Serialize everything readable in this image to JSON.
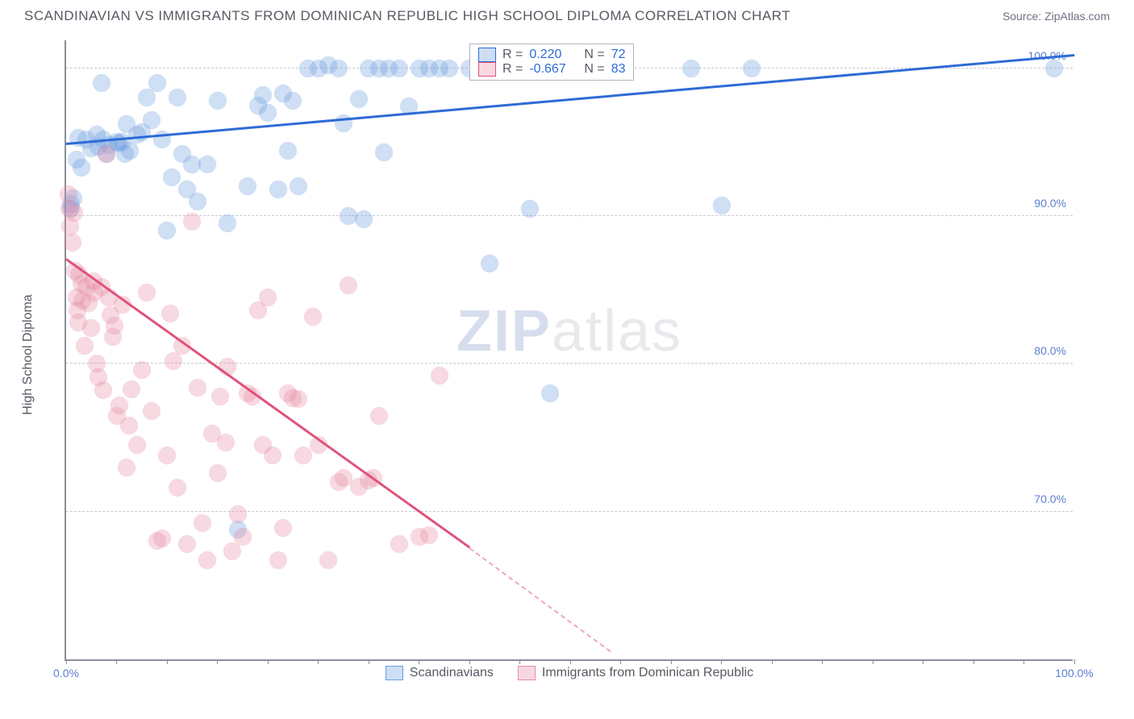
{
  "header": {
    "title": "SCANDINAVIAN VS IMMIGRANTS FROM DOMINICAN REPUBLIC HIGH SCHOOL DIPLOMA CORRELATION CHART",
    "source": "Source: ZipAtlas.com"
  },
  "chart": {
    "type": "scatter",
    "y_axis_title": "High School Diploma",
    "xlim": [
      0,
      100
    ],
    "ylim": [
      60,
      102
    ],
    "x_ticks": [
      0,
      100
    ],
    "x_tick_labels": [
      "0.0%",
      "100.0%"
    ],
    "y_ticks": [
      70,
      80,
      90,
      100
    ],
    "y_tick_labels": [
      "70.0%",
      "80.0%",
      "90.0%",
      "100.0%"
    ],
    "minor_x_tick_step": 5,
    "background_color": "#ffffff",
    "grid_color": "#c7cbd1",
    "axis_color": "#8a8f99",
    "tick_label_color": "#5b7fd1",
    "marker_radius": 10,
    "marker_fill_opacity": 0.32,
    "marker_stroke_opacity": 0.7,
    "marker_stroke_width": 1.2,
    "watermark": {
      "z_text": "ZIP",
      "rest_text": "atlas",
      "z_color": "#4a6fb5",
      "rest_color": "#9aa0aa"
    },
    "series": [
      {
        "name": "Scandinavians",
        "color": "#6d9de0",
        "line_color": "#2e6bd6",
        "R_label": "R =",
        "R_value": "0.220",
        "N_label": "N =",
        "N_value": "72",
        "trend": {
          "x1": 0,
          "y1": 94.8,
          "x2": 100,
          "y2": 100.8,
          "dash": false
        },
        "points": [
          [
            0.5,
            90.5
          ],
          [
            0.5,
            90.8
          ],
          [
            0.7,
            91.2
          ],
          [
            1,
            93.8
          ],
          [
            1.2,
            95.3
          ],
          [
            1.5,
            93.3
          ],
          [
            2,
            95.2
          ],
          [
            2.5,
            94.6
          ],
          [
            3,
            95.5
          ],
          [
            3.2,
            94.7
          ],
          [
            3.5,
            99
          ],
          [
            3.7,
            95.2
          ],
          [
            4,
            94.2
          ],
          [
            4.2,
            94.8
          ],
          [
            5,
            95
          ],
          [
            5.2,
            94.9
          ],
          [
            5.5,
            95
          ],
          [
            5.8,
            94.2
          ],
          [
            6,
            96.2
          ],
          [
            6.3,
            94.4
          ],
          [
            7,
            95.5
          ],
          [
            7.5,
            95.7
          ],
          [
            8,
            98
          ],
          [
            8.5,
            96.5
          ],
          [
            9,
            99
          ],
          [
            9.5,
            95.2
          ],
          [
            10,
            89
          ],
          [
            10.5,
            92.6
          ],
          [
            11,
            98
          ],
          [
            11.5,
            94.2
          ],
          [
            12,
            91.8
          ],
          [
            12.5,
            93.5
          ],
          [
            13,
            91
          ],
          [
            14,
            93.5
          ],
          [
            15,
            97.8
          ],
          [
            16,
            89.5
          ],
          [
            17,
            68.8
          ],
          [
            18,
            92
          ],
          [
            19,
            97.5
          ],
          [
            19.5,
            98.2
          ],
          [
            20,
            97
          ],
          [
            21,
            91.8
          ],
          [
            21.5,
            98.3
          ],
          [
            22,
            94.4
          ],
          [
            22.5,
            97.8
          ],
          [
            23,
            92
          ],
          [
            24,
            100
          ],
          [
            25,
            100
          ],
          [
            26,
            100.2
          ],
          [
            27,
            100
          ],
          [
            27.5,
            96.3
          ],
          [
            28,
            90
          ],
          [
            29,
            97.9
          ],
          [
            29.5,
            89.8
          ],
          [
            30,
            100
          ],
          [
            31,
            100
          ],
          [
            31.5,
            94.3
          ],
          [
            32,
            100
          ],
          [
            33,
            100
          ],
          [
            34,
            97.4
          ],
          [
            35,
            100
          ],
          [
            36,
            100
          ],
          [
            37,
            100
          ],
          [
            38,
            100
          ],
          [
            40,
            100
          ],
          [
            42,
            86.8
          ],
          [
            46,
            90.5
          ],
          [
            48,
            78
          ],
          [
            62,
            100
          ],
          [
            65,
            90.7
          ],
          [
            68,
            100
          ],
          [
            98,
            100
          ]
        ]
      },
      {
        "name": "Immigrants from Dominican Republic",
        "color": "#e78aa5",
        "line_color": "#e0527a",
        "R_label": "R =",
        "R_value": "-0.667",
        "N_label": "N =",
        "N_value": "83",
        "trend": {
          "x1": 0,
          "y1": 87,
          "x2": 40,
          "y2": 67.5,
          "dash": false
        },
        "trend_ext": {
          "x1": 40,
          "y1": 67.5,
          "x2": 54,
          "y2": 60.5,
          "dash": true
        },
        "points": [
          [
            0.2,
            91.5
          ],
          [
            0.3,
            90.5
          ],
          [
            0.4,
            89.3
          ],
          [
            0.6,
            88.2
          ],
          [
            0.8,
            90.2
          ],
          [
            0.9,
            86.3
          ],
          [
            1,
            84.5
          ],
          [
            1.1,
            83.6
          ],
          [
            1.2,
            82.8
          ],
          [
            1.3,
            86
          ],
          [
            1.5,
            85.4
          ],
          [
            1.6,
            84.3
          ],
          [
            1.8,
            81.2
          ],
          [
            2,
            85.2
          ],
          [
            2.2,
            84.1
          ],
          [
            2.5,
            82.4
          ],
          [
            2.7,
            85.6
          ],
          [
            2.8,
            84.8
          ],
          [
            3,
            80
          ],
          [
            3.2,
            79.1
          ],
          [
            3.5,
            85.2
          ],
          [
            3.7,
            78.2
          ],
          [
            4,
            94.2
          ],
          [
            4.2,
            84.5
          ],
          [
            4.4,
            83.3
          ],
          [
            4.6,
            81.8
          ],
          [
            4.8,
            82.6
          ],
          [
            5,
            76.5
          ],
          [
            5.3,
            77.2
          ],
          [
            5.6,
            84
          ],
          [
            6,
            73
          ],
          [
            6.2,
            75.8
          ],
          [
            6.5,
            78.3
          ],
          [
            7,
            74.5
          ],
          [
            7.5,
            79.6
          ],
          [
            8,
            84.8
          ],
          [
            8.5,
            76.8
          ],
          [
            9,
            68
          ],
          [
            9.5,
            68.2
          ],
          [
            10,
            73.8
          ],
          [
            10.3,
            83.4
          ],
          [
            10.6,
            80.2
          ],
          [
            11,
            71.6
          ],
          [
            11.5,
            81.2
          ],
          [
            12,
            67.8
          ],
          [
            12.5,
            89.6
          ],
          [
            13,
            78.4
          ],
          [
            13.5,
            69.2
          ],
          [
            14,
            66.7
          ],
          [
            14.5,
            75.3
          ],
          [
            15,
            72.6
          ],
          [
            15.3,
            77.8
          ],
          [
            15.8,
            74.7
          ],
          [
            16,
            79.8
          ],
          [
            16.5,
            67.3
          ],
          [
            17,
            69.8
          ],
          [
            17.5,
            68.3
          ],
          [
            18,
            78
          ],
          [
            18.5,
            77.8
          ],
          [
            19,
            83.6
          ],
          [
            19.5,
            74.5
          ],
          [
            20,
            84.5
          ],
          [
            20.5,
            73.8
          ],
          [
            21,
            66.7
          ],
          [
            21.5,
            68.9
          ],
          [
            22,
            78
          ],
          [
            22.5,
            77.7
          ],
          [
            23,
            77.6
          ],
          [
            23.5,
            73.8
          ],
          [
            24.5,
            83.2
          ],
          [
            25,
            74.5
          ],
          [
            26,
            66.7
          ],
          [
            27,
            72
          ],
          [
            27.5,
            72.3
          ],
          [
            28,
            85.3
          ],
          [
            29,
            71.7
          ],
          [
            30,
            72.1
          ],
          [
            30.5,
            72.3
          ],
          [
            31,
            76.5
          ],
          [
            33,
            67.8
          ],
          [
            35,
            68.3
          ],
          [
            36,
            68.4
          ],
          [
            37,
            79.2
          ]
        ]
      }
    ],
    "legend": {
      "top_box": {
        "value_color": "#2e6bd6"
      },
      "bottom": [
        {
          "label": "Scandinavians",
          "color": "#6d9de0"
        },
        {
          "label": "Immigrants from Dominican Republic",
          "color": "#e78aa5"
        }
      ]
    }
  }
}
